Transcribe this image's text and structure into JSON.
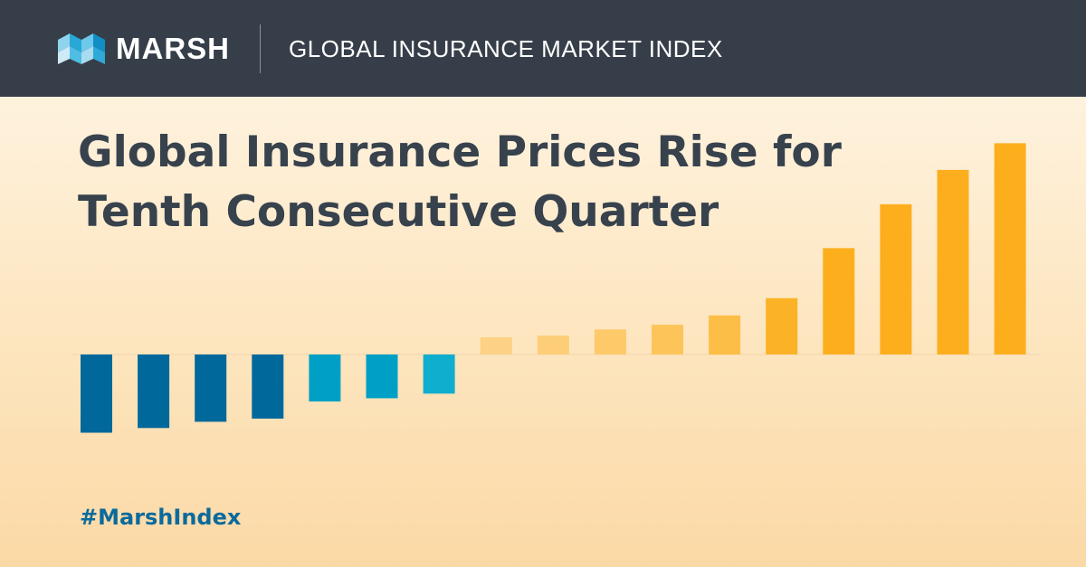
{
  "header": {
    "brand": "MARSH",
    "logo_icon": "marsh-logo-icon",
    "index_title": "GLOBAL INSURANCE MARKET INDEX"
  },
  "headline": {
    "line1": "Global Insurance Prices Rise for",
    "line2": "Tenth Consecutive Quarter"
  },
  "hashtag": "#MarshIndex",
  "colors": {
    "header_bg": "#363f49",
    "headline": "#37424d",
    "hashtag": "#0b6a9c",
    "baseline": "#f2d6ad"
  },
  "chart_data": {
    "type": "bar",
    "grid": false,
    "legend": "none",
    "values": [
      -5.0,
      -4.7,
      -4.3,
      -4.1,
      -3.0,
      -2.8,
      -2.5,
      1.1,
      1.2,
      1.6,
      1.9,
      2.5,
      3.6,
      6.8,
      9.6,
      11.8,
      13.5
    ],
    "colors": [
      "#00689b",
      "#00689b",
      "#00689b",
      "#00689b",
      "#00a0c6",
      "#00a0c6",
      "#10aece",
      "#fdd186",
      "#fdcd77",
      "#fdc969",
      "#fdc459",
      "#fdbe48",
      "#fcb226",
      "#fcae1d",
      "#fcae1d",
      "#fcae1d",
      "#fcae1d"
    ]
  }
}
